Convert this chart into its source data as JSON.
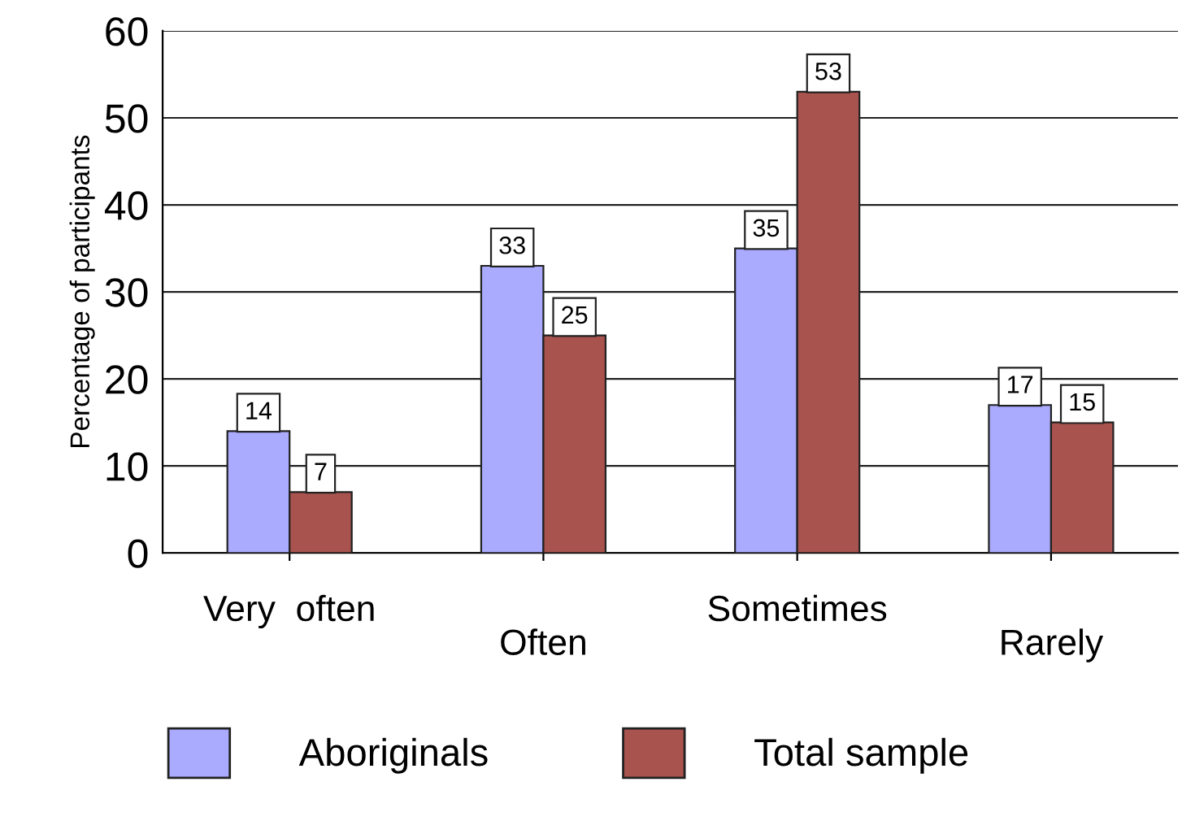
{
  "chart_data": {
    "type": "bar",
    "categories": [
      "Very  often",
      "Often",
      "Sometimes",
      "Rarely"
    ],
    "series": [
      {
        "name": "Aboriginals",
        "color": "#aaaaff",
        "values": [
          14,
          33,
          35,
          17
        ]
      },
      {
        "name": "Total sample",
        "color": "#a9534f",
        "values": [
          7,
          25,
          53,
          15
        ]
      }
    ],
    "ylabel": "Percentage of participants",
    "ylim": [
      0,
      60
    ],
    "yticks": [
      0,
      10,
      20,
      30,
      40,
      50,
      60
    ],
    "grid": "y",
    "legend": "bottom",
    "data_labels": true
  }
}
